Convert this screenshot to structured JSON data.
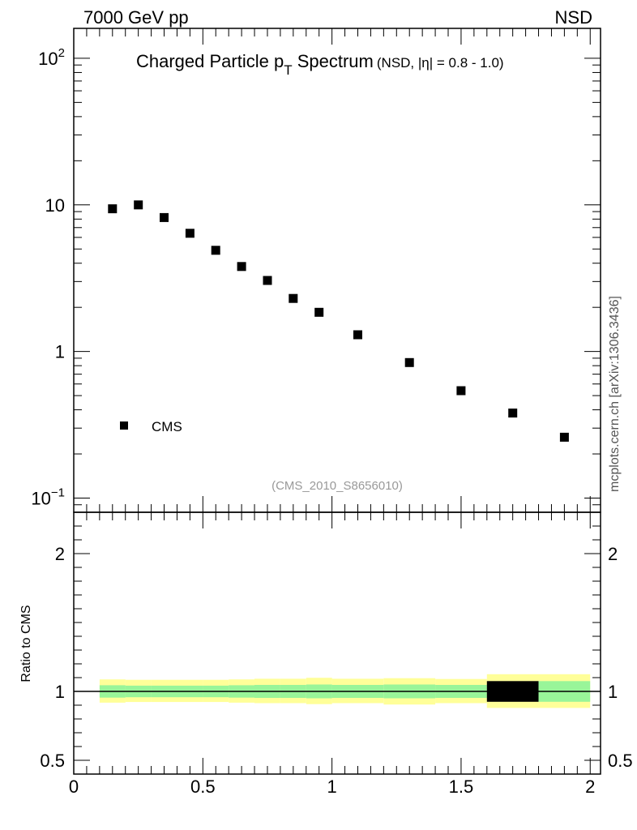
{
  "header": {
    "left": "7000 GeV pp",
    "right": "NSD"
  },
  "title": {
    "main_prefix": "Charged Particle p",
    "main_sub": "T",
    "main_suffix": " Spectrum",
    "qualifier_prefix": "(NSD, |",
    "qualifier_eta": "η",
    "qualifier_suffix": "| = 0.8 - 1.0)"
  },
  "side_note": "mcplots.cern.ch [arXiv:1306.3436]",
  "watermark": "(CMS_2010_S8656010)",
  "legend": {
    "entries": [
      "CMS"
    ]
  },
  "colors": {
    "data": "#000000",
    "band_inner": "#99f599",
    "band_outer": "#ffff99",
    "frame": "#000000"
  },
  "chart_data": [
    {
      "type": "scatter",
      "panel": "main",
      "title": "Charged Particle pT Spectrum (NSD, |η| = 0.8 - 1.0)",
      "xlabel": "",
      "ylabel": "",
      "xlim": [
        0,
        2.04
      ],
      "ylim": [
        0.08,
        160
      ],
      "y_scale": "log",
      "grid": false,
      "legend_position": "bottom-left",
      "x_ticks": [
        "0",
        "0.5",
        "1",
        "1.5",
        "2"
      ],
      "y_ticks": [
        {
          "value": 0.1,
          "base": "10",
          "exp": "−1"
        },
        {
          "value": 1,
          "base": "1",
          "exp": ""
        },
        {
          "value": 10,
          "base": "10",
          "exp": ""
        },
        {
          "value": 100,
          "base": "10",
          "exp": "2"
        }
      ],
      "series": [
        {
          "name": "CMS",
          "marker": "square",
          "x": [
            0.15,
            0.25,
            0.35,
            0.45,
            0.55,
            0.65,
            0.75,
            0.85,
            0.95,
            1.1,
            1.3,
            1.5,
            1.7,
            1.9
          ],
          "y": [
            9.4,
            10.0,
            8.2,
            6.4,
            4.9,
            3.8,
            3.05,
            2.3,
            1.85,
            1.3,
            0.84,
            0.54,
            0.38,
            0.26
          ]
        }
      ]
    },
    {
      "type": "area",
      "panel": "ratio",
      "ylabel": "Ratio to CMS",
      "xlim": [
        0,
        2.04
      ],
      "ylim": [
        0.4,
        2.3
      ],
      "grid": false,
      "reference_line": 1.0,
      "y_ticks": [
        "0.5",
        "1",
        "2"
      ],
      "bins": [
        {
          "x_low": 0.1,
          "x_high": 0.2,
          "inner_low": 0.955,
          "inner_high": 1.045,
          "outer_low": 0.918,
          "outer_high": 1.087
        },
        {
          "x_low": 0.2,
          "x_high": 0.3,
          "inner_low": 0.958,
          "inner_high": 1.042,
          "outer_low": 0.923,
          "outer_high": 1.084
        },
        {
          "x_low": 0.3,
          "x_high": 0.4,
          "inner_low": 0.958,
          "inner_high": 1.042,
          "outer_low": 0.923,
          "outer_high": 1.084
        },
        {
          "x_low": 0.4,
          "x_high": 0.5,
          "inner_low": 0.958,
          "inner_high": 1.042,
          "outer_low": 0.923,
          "outer_high": 1.084
        },
        {
          "x_low": 0.5,
          "x_high": 0.6,
          "inner_low": 0.958,
          "inner_high": 1.042,
          "outer_low": 0.923,
          "outer_high": 1.084
        },
        {
          "x_low": 0.6,
          "x_high": 0.7,
          "inner_low": 0.955,
          "inner_high": 1.045,
          "outer_low": 0.918,
          "outer_high": 1.087
        },
        {
          "x_low": 0.7,
          "x_high": 0.8,
          "inner_low": 0.953,
          "inner_high": 1.047,
          "outer_low": 0.915,
          "outer_high": 1.092
        },
        {
          "x_low": 0.8,
          "x_high": 0.9,
          "inner_low": 0.953,
          "inner_high": 1.047,
          "outer_low": 0.915,
          "outer_high": 1.092
        },
        {
          "x_low": 0.9,
          "x_high": 1.0,
          "inner_low": 0.95,
          "inner_high": 1.05,
          "outer_low": 0.908,
          "outer_high": 1.099
        },
        {
          "x_low": 1.0,
          "x_high": 1.2,
          "inner_low": 0.953,
          "inner_high": 1.047,
          "outer_low": 0.915,
          "outer_high": 1.092
        },
        {
          "x_low": 1.2,
          "x_high": 1.4,
          "inner_low": 0.95,
          "inner_high": 1.05,
          "outer_low": 0.905,
          "outer_high": 1.096
        },
        {
          "x_low": 1.4,
          "x_high": 1.6,
          "inner_low": 0.953,
          "inner_high": 1.047,
          "outer_low": 0.915,
          "outer_high": 1.09
        },
        {
          "x_low": 1.6,
          "x_high": 1.8,
          "inner_low": 0.925,
          "inner_high": 1.075,
          "outer_low": 0.88,
          "outer_high": 1.125,
          "inner_color": "#000000"
        },
        {
          "x_low": 1.8,
          "x_high": 2.0,
          "inner_low": 0.925,
          "inner_high": 1.075,
          "outer_low": 0.88,
          "outer_high": 1.125
        }
      ]
    }
  ]
}
